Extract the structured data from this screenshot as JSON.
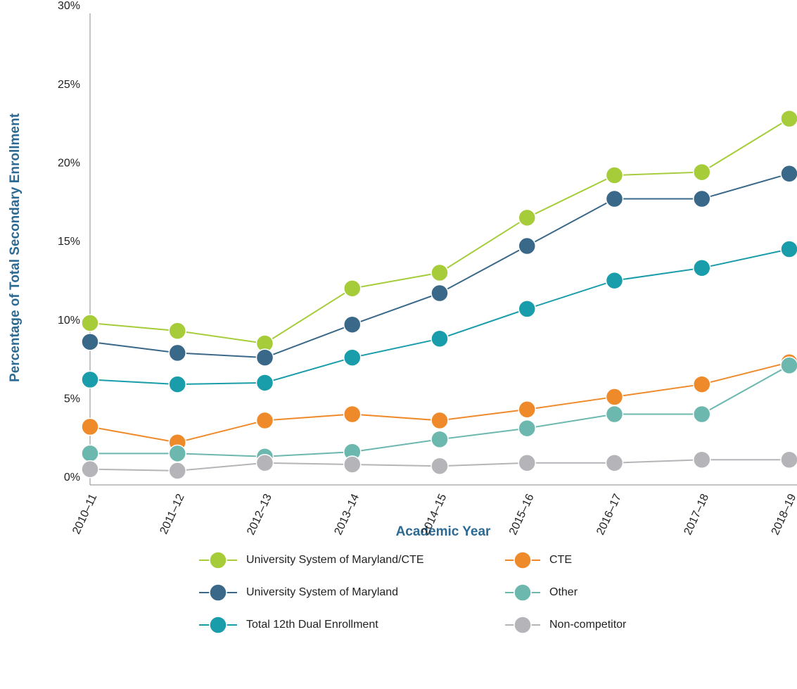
{
  "chart_data": {
    "type": "line",
    "xlabel": "Academic Year",
    "ylabel": "Percentage of Total Secondary Enrollment",
    "categories": [
      "2010–11",
      "2011–12",
      "2012–13",
      "2013–14",
      "2014–15",
      "2015–16",
      "2016–17",
      "2017–18",
      "2018–19"
    ],
    "ylim": [
      0,
      30
    ],
    "yticks": [
      {
        "value": 0,
        "label": "0%"
      },
      {
        "value": 5,
        "label": "5%"
      },
      {
        "value": 10,
        "label": "10%"
      },
      {
        "value": 15,
        "label": "15%"
      },
      {
        "value": 20,
        "label": "20%"
      },
      {
        "value": 25,
        "label": "25%"
      },
      {
        "value": 30,
        "label": "30%"
      }
    ],
    "grid": false,
    "series": [
      {
        "name": "University System of Maryland/CTE",
        "color": "#a6cc3a",
        "values": [
          10.3,
          9.8,
          9.0,
          12.5,
          13.5,
          17.0,
          19.7,
          19.9,
          23.3
        ]
      },
      {
        "name": "University System of Maryland",
        "color": "#3a6888",
        "values": [
          9.1,
          8.4,
          8.1,
          10.2,
          12.2,
          15.2,
          18.2,
          18.2,
          19.8
        ]
      },
      {
        "name": "Total 12th Dual Enrollment",
        "color": "#1a9daa",
        "values": [
          6.7,
          6.4,
          6.5,
          8.1,
          9.3,
          11.2,
          13.0,
          13.8,
          15.0
        ]
      },
      {
        "name": "CTE",
        "color": "#ef8a2a",
        "values": [
          3.7,
          2.7,
          4.1,
          4.5,
          4.1,
          4.8,
          5.6,
          6.4,
          7.8
        ]
      },
      {
        "name": "Other",
        "color": "#6cb8ae",
        "values": [
          2.0,
          2.0,
          1.8,
          2.1,
          2.9,
          3.6,
          4.5,
          4.5,
          7.6
        ]
      },
      {
        "name": "Non-competitor",
        "color": "#b5b5b9",
        "values": [
          1.0,
          0.9,
          1.4,
          1.3,
          1.2,
          1.4,
          1.4,
          1.6,
          1.6
        ]
      }
    ]
  }
}
